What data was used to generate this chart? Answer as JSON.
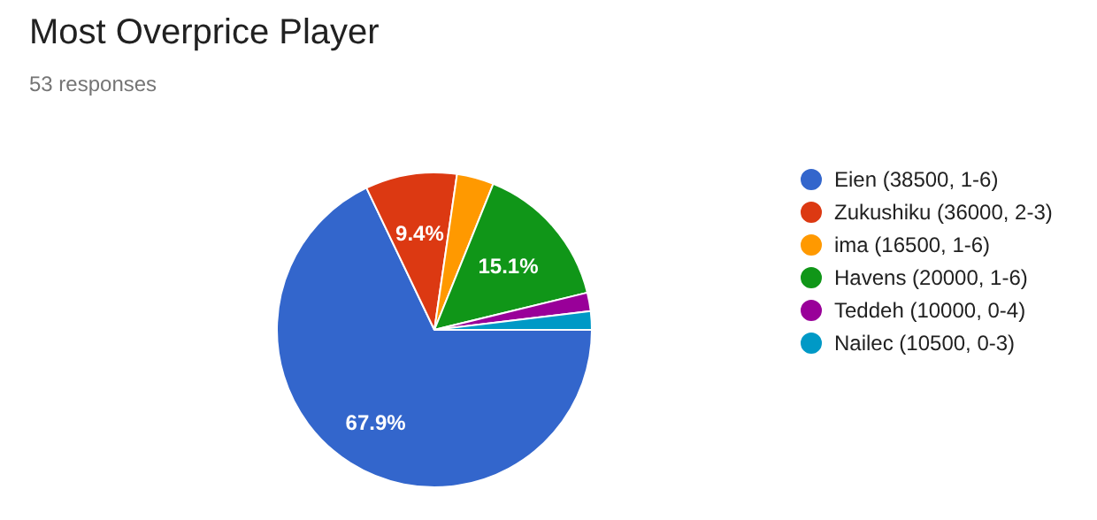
{
  "chart_data": {
    "type": "pie",
    "title": "Most Overprice Player",
    "subtitle": "53 responses",
    "categories": [
      "Eien (38500, 1-6)",
      "Zukushiku (36000, 2-3)",
      "ima (16500, 1-6)",
      "Havens (20000, 1-6)",
      "Teddeh (10000, 0-4)",
      "Nailec (10500, 0-3)"
    ],
    "values": [
      67.9,
      9.4,
      3.8,
      15.1,
      1.9,
      1.9
    ],
    "colors": [
      "#3366cc",
      "#dc3912",
      "#ff9900",
      "#109618",
      "#990099",
      "#0099c6"
    ],
    "value_labels": [
      "67.9%",
      "9.4%",
      null,
      "15.1%",
      null,
      null
    ],
    "legend": "right"
  }
}
